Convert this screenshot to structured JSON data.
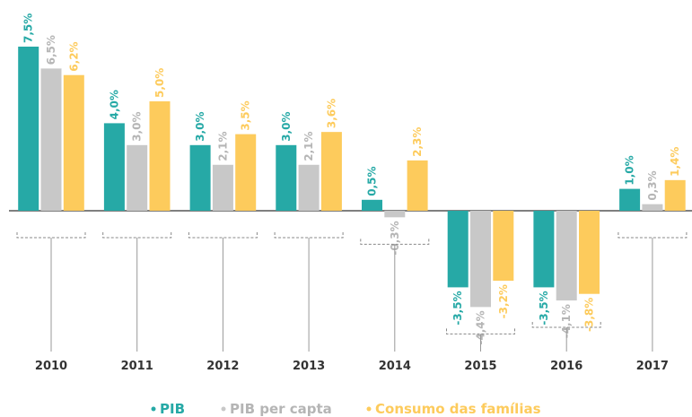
{
  "chart_data": {
    "type": "bar",
    "categories": [
      "2010",
      "2011",
      "2012",
      "2013",
      "2014",
      "2015",
      "2016",
      "2017"
    ],
    "series": [
      {
        "name": "PIB",
        "color": "#26a9a6",
        "values": [
          7.5,
          4.0,
          3.0,
          3.0,
          0.5,
          -3.5,
          -3.5,
          1.0
        ],
        "value_labels": [
          "7,5%",
          "4,0%",
          "3,0%",
          "3,0%",
          "0,5%",
          "-3,5%",
          "-3,5%",
          "1,0%"
        ]
      },
      {
        "name": "PIB per capta",
        "color": "#c8c8c8",
        "values": [
          6.5,
          3.0,
          2.1,
          2.1,
          -0.3,
          -4.4,
          -4.1,
          0.3
        ],
        "value_labels": [
          "6,5%",
          "3,0%",
          "2,1%",
          "2,1%",
          "-0,3%",
          "-4,4%",
          "-4,1%",
          "0,3%"
        ]
      },
      {
        "name": "Consumo das famílias",
        "color": "#fdcb5c",
        "values": [
          6.2,
          5.0,
          3.5,
          3.6,
          2.3,
          -3.2,
          -3.8,
          1.4
        ],
        "value_labels": [
          "6,2%",
          "5,0%",
          "3,5%",
          "3,6%",
          "2,3%",
          "-3,2%",
          "-3,8%",
          "1,4%"
        ]
      }
    ]
  }
}
